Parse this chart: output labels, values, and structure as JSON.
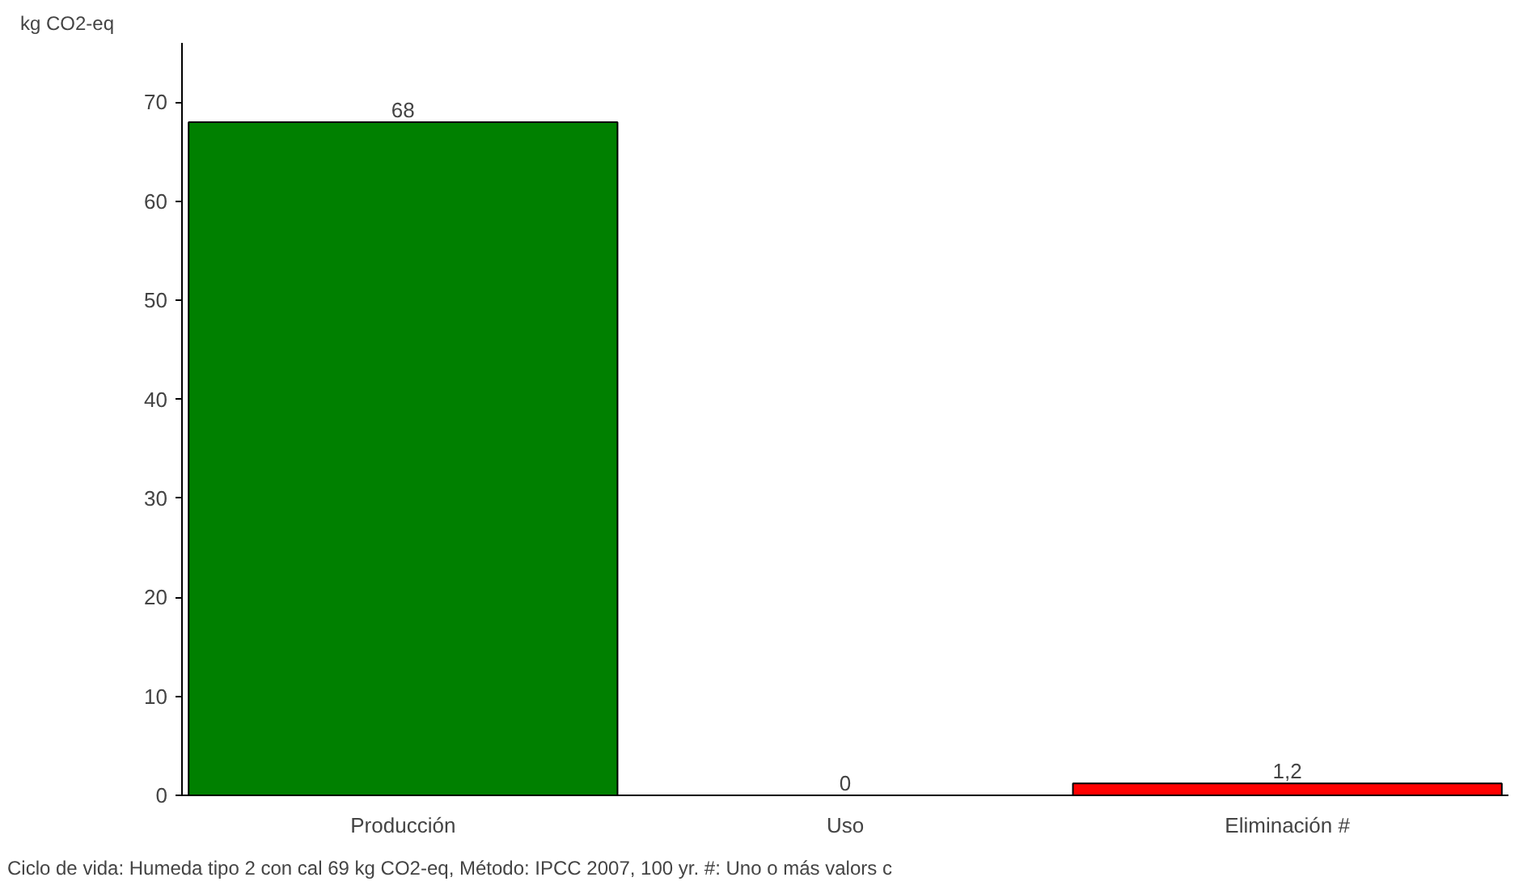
{
  "chart_data": {
    "type": "bar",
    "ylabel": "kg CO2-eq",
    "categories": [
      "Producción",
      "Uso",
      "Eliminación #"
    ],
    "values": [
      68,
      0,
      1.2
    ],
    "colors": [
      "#008000",
      null,
      "#ff0000"
    ],
    "value_labels": [
      "68",
      "0",
      "1,2"
    ],
    "ylim": [
      0,
      76
    ],
    "yticks": [
      0,
      10,
      20,
      30,
      40,
      50,
      60,
      70
    ],
    "grid": false,
    "annotations": [
      "Ciclo de vida:  Humeda tipo 2 con cal  69 kg CO2-eq,  Método: IPCC 2007, 100 yr.  #: Uno o más valors c"
    ]
  }
}
